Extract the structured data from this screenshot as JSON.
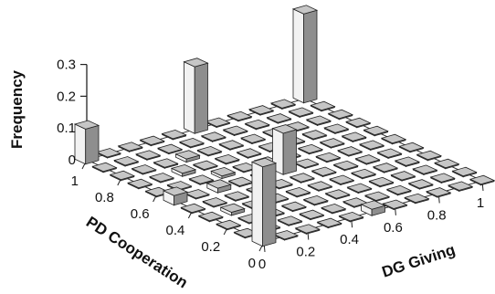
{
  "chart_data": {
    "type": "bar3d",
    "zlabel": "Frequency",
    "xlabel": "DG Giving",
    "ylabel": "PD Cooperation",
    "zlim": [
      0,
      0.3
    ],
    "z_ticks": [
      "0",
      "0.1",
      "0.2",
      "0.3"
    ],
    "x_ticks": [
      "0",
      "0.2",
      "0.4",
      "0.6",
      "0.8",
      "1"
    ],
    "y_ticks": [
      "0",
      "0.2",
      "0.4",
      "0.6",
      "0.8",
      "1"
    ],
    "grid_steps": 10,
    "baseline_frequency": 0.003,
    "bars": [
      {
        "dg_giving": 0.0,
        "pd_cooperation": 1.0,
        "frequency": 0.11
      },
      {
        "dg_giving": 0.5,
        "pd_cooperation": 1.0,
        "frequency": 0.21
      },
      {
        "dg_giving": 1.0,
        "pd_cooperation": 1.0,
        "frequency": 0.28
      },
      {
        "dg_giving": 0.0,
        "pd_cooperation": 0.0,
        "frequency": 0.25
      },
      {
        "dg_giving": 0.5,
        "pd_cooperation": 0.5,
        "frequency": 0.13
      },
      {
        "dg_giving": 0.0,
        "pd_cooperation": 0.5,
        "frequency": 0.03
      },
      {
        "dg_giving": 0.5,
        "pd_cooperation": 0.0,
        "frequency": 0.02
      },
      {
        "dg_giving": 0.2,
        "pd_cooperation": 0.5,
        "frequency": 0.015
      },
      {
        "dg_giving": 0.3,
        "pd_cooperation": 0.8,
        "frequency": 0.01
      },
      {
        "dg_giving": 0.1,
        "pd_cooperation": 0.3,
        "frequency": 0.01
      },
      {
        "dg_giving": 0.2,
        "pd_cooperation": 0.7,
        "frequency": 0.01
      },
      {
        "dg_giving": 0.3,
        "pd_cooperation": 0.6,
        "frequency": 0.008
      }
    ]
  }
}
